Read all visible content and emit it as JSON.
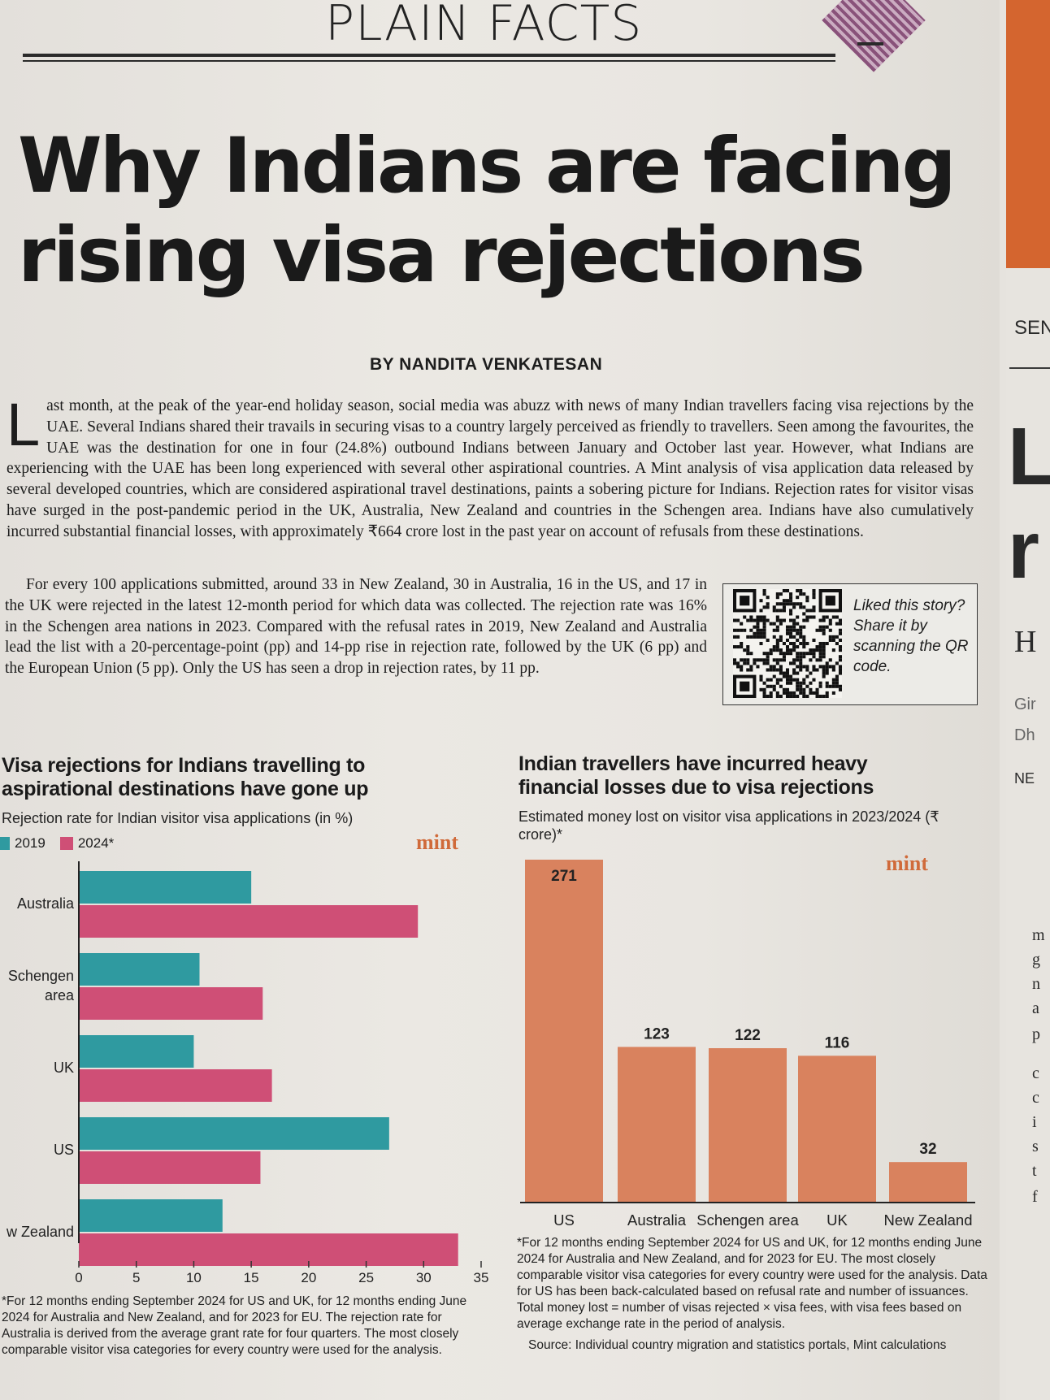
{
  "masthead": "PLAIN FACTS",
  "headline": "Why Indians are facing rising visa rejections",
  "byline": "BY NANDITA VENKATESAN",
  "article": {
    "drop_cap": "L",
    "paragraph1": "ast month, at the peak of the year-end holiday season, social media was abuzz with news of many Indian travellers facing visa rejections by the UAE. Several Indians shared their travails in securing visas to a country largely perceived as friendly to travellers. Seen among the favourites, the UAE was the destination for one in four (24.8%) outbound Indians between January and October last year. However, what Indians are experiencing with the UAE has been long experienced with several other aspirational countries. A Mint analysis of visa application data released by several developed countries, which are considered aspirational travel destinations, paints a sobering picture for Indians. Rejection rates for visitor visas have surged in the post-pandemic period in the UK, Australia, New Zealand and countries in the Schengen area. Indians have also cumulatively incurred substantial financial losses, with approximately ₹664 crore lost in the past year on account of refusals from these destinations.",
    "paragraph2": "For every 100 applications submitted, around 33 in New Zealand, 30 in Australia, 16 in the US, and 17 in the UK were rejected in the latest 12-month period for which data was collected. The rejection rate was 16% in the Schengen area nations in 2023. Compared with the refusal rates in 2019, New Zealand and Australia lead the list with a 20-percentage-point (pp) and 14-pp rise in rejection rate, followed by the UK (6 pp) and the European Union (5 pp). Only the US has seen a drop in rejection rates, by 11 pp."
  },
  "share_box": {
    "text": "Liked this story? Share it by scanning the QR code."
  },
  "chart_left": {
    "title": "Visa rejections for Indians travelling to aspirational destinations have gone up",
    "subtitle": "Rejection rate for Indian visitor visa applications (in %)",
    "brand": "mint",
    "legend": [
      "2019",
      "2024*"
    ],
    "note": "*For 12 months ending September 2024 for US and UK, for 12 months ending June 2024 for Australia and New Zealand, and for 2023 for EU. The rejection rate for Australia is derived from the average grant rate for four quarters. The most closely comparable visitor visa categories for every country were used for the analysis."
  },
  "chart_right": {
    "title": "Indian travellers have incurred heavy financial losses due to visa rejections",
    "subtitle": "Estimated money lost on visitor visa applications in 2023/2024 (₹ crore)*",
    "brand": "mint",
    "note": "*For 12 months ending September 2024 for US and UK, for 12 months ending June 2024 for Australia and New Zealand, and for 2023 for EU. The most closely comparable visitor visa categories for every country were used for the analysis. Data for US has been back-calculated based on refusal rate and number of issuances. Total money lost = number of visas rejected × visa fees, with visa fees based on average exchange rate in the period of analysis.",
    "source": "Source: Individual country migration and statistics portals, Mint calculations"
  },
  "chart_data": [
    {
      "type": "bar",
      "orientation": "horizontal",
      "title": "Visa rejections for Indians travelling to aspirational destinations have gone up",
      "subtitle": "Rejection rate for Indian visitor visa applications (in %)",
      "categories": [
        "Australia",
        "Schengen area",
        "UK",
        "US",
        "New Zealand"
      ],
      "series": [
        {
          "name": "2019",
          "values": [
            15,
            10.5,
            10,
            27,
            12.5
          ],
          "color": "#2f9aa0"
        },
        {
          "name": "2024*",
          "values": [
            29.5,
            16,
            16.8,
            15.8,
            33
          ],
          "color": "#cf4f76"
        }
      ],
      "xlim": [
        0,
        35
      ],
      "xticks": [
        0,
        5,
        10,
        15,
        20,
        25,
        30,
        35
      ],
      "legend": "top-left",
      "grid": false
    },
    {
      "type": "bar",
      "title": "Indian travellers have incurred heavy financial losses due to visa rejections",
      "subtitle": "Estimated money lost on visitor visa applications in 2023/2024 (₹ crore)*",
      "categories": [
        "US",
        "Australia",
        "Schengen area",
        "UK",
        "New Zealand"
      ],
      "values": [
        271,
        123,
        122,
        116,
        32
      ],
      "color": "#d9825e",
      "ylim": [
        0,
        271
      ],
      "grid": false
    }
  ],
  "side_strip": {
    "label1": "SEN",
    "label2": "L",
    "label3": "r",
    "label4": "H",
    "label5": "Gir",
    "label6": "Dh",
    "label7": "NE",
    "letters": [
      "m",
      "g",
      "n",
      "a",
      "p",
      "c",
      "c",
      "i",
      "s",
      "t",
      "f"
    ]
  }
}
